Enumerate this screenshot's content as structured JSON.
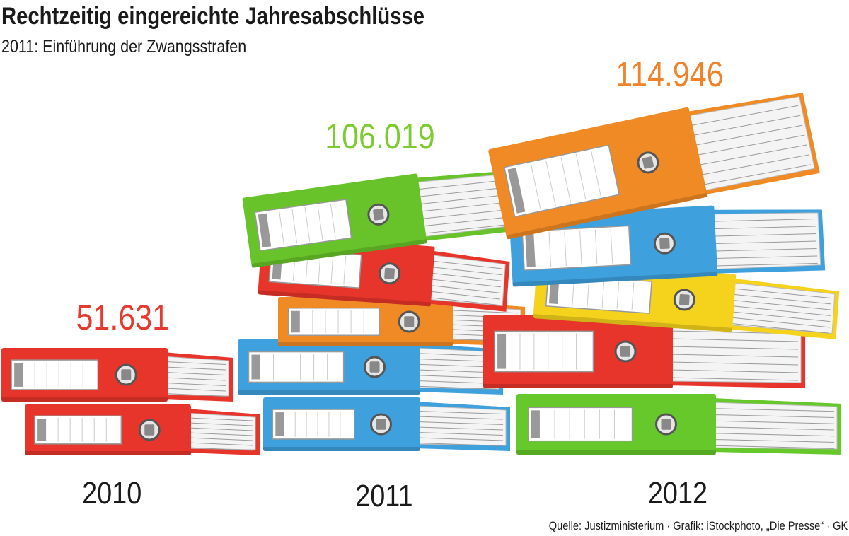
{
  "title": "Rechtzeitig eingereichte Jahresabschlüsse",
  "subtitle": "2011: Einführung der Zwangsstrafen",
  "source": "Quelle: Justizministerium · Grafik: iStockphoto, „Die Presse“ · GK",
  "chart_data": {
    "type": "bar",
    "style": "pictogram stacks of binders",
    "title": "Rechtzeitig eingereichte Jahresabschlüsse",
    "subtitle": "2011: Einführung der Zwangsstrafen",
    "categories": [
      "2010",
      "2011",
      "2012"
    ],
    "values": [
      51631,
      106019,
      114946
    ],
    "value_labels": [
      "51.631",
      "106.019",
      "114.946"
    ],
    "value_label_colors": [
      "#e63a2e",
      "#7dcb2f",
      "#f0832a"
    ],
    "stacks": [
      [
        "#e8352b",
        "#e8352b"
      ],
      [
        "#3ea0dc",
        "#3ea0dc",
        "#f08a24",
        "#e8352b",
        "#68c32a"
      ],
      [
        "#66c82a",
        "#e8352b",
        "#f5d31c",
        "#3ea0dc",
        "#f08a24"
      ]
    ]
  }
}
